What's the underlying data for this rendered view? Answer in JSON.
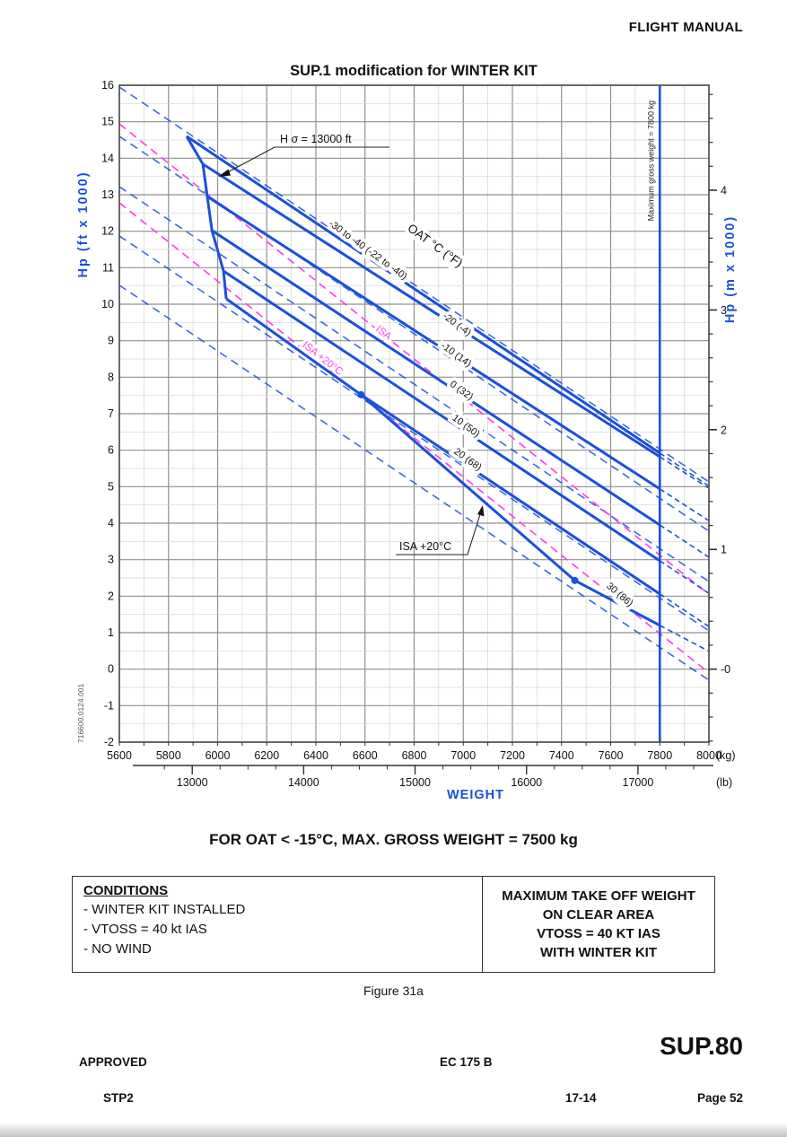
{
  "page": {
    "header": "FLIGHT MANUAL",
    "caption": "FOR OAT < -15°C, MAX. GROSS WEIGHT = 7500 kg",
    "figure_label": "Figure 31a",
    "doc_number": "716600.0124.001",
    "conditions": {
      "title": "CONDITIONS",
      "items": [
        "- WINTER KIT INSTALLED",
        "- VTOSS = 40 kt IAS",
        "- NO WIND"
      ]
    },
    "right_box": {
      "lines": [
        "MAXIMUM TAKE OFF WEIGHT",
        "ON CLEAR AREA",
        "VTOSS = 40 KT IAS",
        "WITH WINTER KIT"
      ]
    },
    "footer": {
      "approved": "APPROVED",
      "aircraft": "EC 175 B",
      "sup": "SUP.80",
      "stp": "STP2",
      "revision": "17-14",
      "page": "Page 52"
    }
  },
  "chart_data": {
    "type": "line",
    "title": "SUP.1 modification for WINTER KIT",
    "x_axis": {
      "label": "WEIGHT",
      "unit": "(kg)",
      "min": 5600,
      "max": 8000,
      "major_step": 200,
      "minor_step": 100
    },
    "x_axis_secondary": {
      "unit": "(lb)",
      "major_ticks": [
        13000,
        14000,
        15000,
        16000,
        17000
      ],
      "minor_step": 250,
      "minor_start": 12750,
      "minor_end": 17500,
      "kg_per_lb": 0.453592
    },
    "y_axis": {
      "label": "Hp (ft x 1000)",
      "min": -2,
      "max": 16,
      "major_step": 1,
      "minor_step": 0.5
    },
    "y_axis_secondary": {
      "label": "Hp (m x 1000)",
      "major_ticks": [
        {
          "m": 4000,
          "text": "4"
        },
        {
          "m": 3000,
          "text": "3"
        },
        {
          "m": 2000,
          "text": "2"
        },
        {
          "m": 1000,
          "text": "1"
        },
        {
          "m": 0,
          "text": "-0"
        }
      ],
      "minor_step_m": 200,
      "ft_per_m": 3.28084
    },
    "limit_line": {
      "kg": 7800,
      "label": "Maximum gross weight = 7800 kg"
    },
    "envelope": {
      "points": [
        [
          5874,
          14.6
        ],
        [
          5940,
          13.84
        ],
        [
          5958,
          12.95
        ],
        [
          5977,
          12.02
        ],
        [
          6024,
          10.91
        ],
        [
          6035,
          10.15
        ]
      ]
    },
    "family_label": {
      "text": "OAT °C (°F)",
      "pos": [
        6876,
        11.52
      ],
      "rot": 36
    },
    "series": [
      {
        "label": "-30 to -40 (-22 to -40)",
        "points": [
          [
            5874,
            14.6
          ],
          [
            7800,
            5.92
          ]
        ],
        "ext": [
          7997,
          5.03
        ],
        "label_pos": [
          6605,
          11.42
        ],
        "label_rot": 36
      },
      {
        "label": "-20 (-4)",
        "points": [
          [
            5940,
            13.84
          ],
          [
            7800,
            5.82
          ]
        ],
        "ext": [
          7997,
          4.97
        ],
        "label_pos": [
          6967,
          9.38
        ],
        "label_rot": 36
      },
      {
        "label": "-10 (14)",
        "points": [
          [
            5958,
            12.95
          ],
          [
            7800,
            4.94
          ]
        ],
        "ext": [
          7997,
          4.08
        ],
        "label_pos": [
          6964,
          8.55
        ],
        "label_rot": 36
      },
      {
        "label": "0 (32)",
        "points": [
          [
            5977,
            12.02
          ],
          [
            7800,
            3.95
          ]
        ],
        "ext": [
          7997,
          3.08
        ],
        "label_pos": [
          6986,
          7.57
        ],
        "label_rot": 36
      },
      {
        "label": "10 (50)",
        "points": [
          [
            6024,
            10.91
          ],
          [
            7800,
            2.97
          ]
        ],
        "ext": [
          7997,
          2.09
        ],
        "label_pos": [
          7004,
          6.6
        ],
        "label_rot": 36
      },
      {
        "label": "20 (68)",
        "points": [
          [
            6035,
            10.15
          ],
          [
            6584,
            7.52
          ],
          [
            7800,
            2.06
          ]
        ],
        "ext": [
          7997,
          1.18
        ],
        "label_pos": [
          7011,
          5.68
        ],
        "label_rot": 36,
        "dots": [
          [
            6584,
            7.52
          ]
        ]
      },
      {
        "label": "30 (86)",
        "points": [
          [
            6584,
            7.52
          ],
          [
            7454,
            2.43
          ],
          [
            7800,
            1.2
          ]
        ],
        "ext": [
          7997,
          0.5
        ],
        "label_pos": [
          7629,
          1.98
        ],
        "label_rot": 40,
        "dots": [
          [
            7454,
            2.43
          ]
        ]
      }
    ],
    "iso_dashed_blue": [
      [
        [
          5600,
          15.95
        ],
        [
          8000,
          5.13
        ]
      ],
      [
        [
          5600,
          14.6
        ],
        [
          8000,
          3.78
        ]
      ],
      [
        [
          5600,
          13.22
        ],
        [
          8000,
          2.4
        ]
      ],
      [
        [
          5600,
          11.87
        ],
        [
          8000,
          1.05
        ]
      ],
      [
        [
          5600,
          10.52
        ],
        [
          8000,
          -0.3
        ]
      ]
    ],
    "isa_lines": [
      {
        "label": "ISA",
        "points": [
          [
            5600,
            14.94
          ],
          [
            8000,
            2.05
          ]
        ],
        "label_pos": [
          6668,
          9.15
        ],
        "label_rot": 38
      },
      {
        "label": "ISA +20°C",
        "points": [
          [
            5600,
            12.78
          ],
          [
            8000,
            -0.1
          ]
        ],
        "label_pos": [
          6420,
          8.45
        ],
        "label_rot": 38
      }
    ],
    "annotations": [
      {
        "id": "hsigma",
        "text": "H σ = 13000 ft"
      },
      {
        "id": "isa20",
        "text": "ISA +20°C"
      }
    ],
    "colors": {
      "line_blue": "#1a50dd",
      "magenta": "#ff44ee",
      "grid_major": "#8f8f8f",
      "grid_minor": "#d4d4d4",
      "frame": "#4a4a4a",
      "text": "#111111"
    }
  }
}
